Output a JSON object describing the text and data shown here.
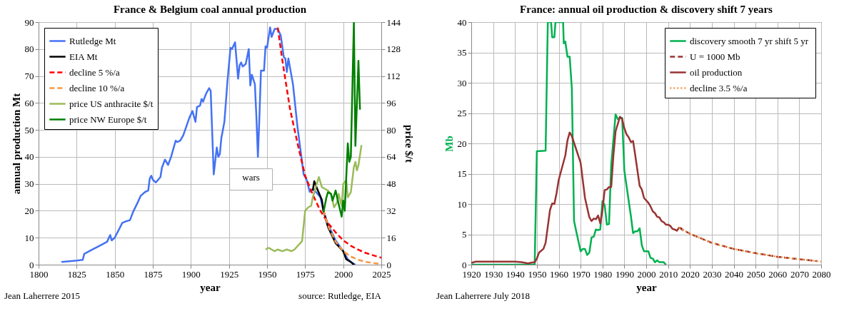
{
  "chart_data": [
    {
      "type": "line",
      "title": "France & Belgium coal annual production",
      "xlabel": "year",
      "ylabel": "annual production Mt",
      "y2label": "price $/t",
      "xlim": [
        1800,
        2025
      ],
      "xticks": [
        1800,
        1825,
        1850,
        1875,
        1900,
        1925,
        1950,
        1975,
        2000,
        2025
      ],
      "ylim": [
        0,
        90
      ],
      "yticks": [
        0,
        10,
        20,
        30,
        40,
        50,
        60,
        70,
        80,
        90
      ],
      "y2lim": [
        0,
        144
      ],
      "y2ticks": [
        0,
        16,
        32,
        48,
        64,
        80,
        96,
        112,
        128,
        144
      ],
      "grid": true,
      "legend": "top left",
      "annotations": [
        "wars",
        "Jean Laherrere 2015",
        "source: Rutledge, EIA"
      ],
      "series": [
        {
          "name": "Rutledge Mt",
          "color": "#4472f4",
          "line_style": "solid",
          "x": [
            1815,
            1825,
            1829,
            1830,
            1835,
            1840,
            1845,
            1847,
            1848,
            1850,
            1855,
            1857,
            1860,
            1862,
            1865,
            1867,
            1870,
            1872,
            1873,
            1874,
            1875,
            1877,
            1880,
            1881,
            1883,
            1885,
            1887,
            1890,
            1891,
            1893,
            1895,
            1899,
            1901,
            1903,
            1904,
            1906,
            1907,
            1908,
            1910,
            1912,
            1913,
            1915,
            1917,
            1918,
            1919,
            1920,
            1922,
            1924,
            1926,
            1927,
            1929,
            1931,
            1932,
            1933,
            1934,
            1936,
            1938,
            1939,
            1940,
            1942,
            1943,
            1944,
            1945,
            1946,
            1948,
            1949,
            1950,
            1952,
            1953,
            1955,
            1957,
            1959,
            1961,
            1962,
            1963,
            1964,
            1967,
            1970,
            1973,
            1974,
            1976,
            1978,
            1980,
            1982,
            1985,
            1987,
            1990,
            1995,
            2000,
            2003,
            2005,
            2008
          ],
          "values": [
            1,
            1.5,
            1.8,
            4,
            5.5,
            7,
            8.5,
            11,
            9,
            10,
            15.5,
            16,
            16.5,
            19.5,
            23,
            25.5,
            27,
            27.5,
            32,
            33,
            31.5,
            30.5,
            32.5,
            36,
            39,
            37,
            40,
            46,
            45.5,
            46,
            48,
            54.5,
            57,
            53,
            58.5,
            59,
            61.5,
            60.5,
            63.5,
            65.5,
            64.5,
            33.5,
            43.5,
            40,
            41,
            47,
            53,
            68,
            80.5,
            80,
            82.5,
            69,
            74,
            75,
            73.5,
            74.5,
            80,
            66.5,
            70.5,
            67,
            55,
            40,
            55,
            72,
            72,
            81,
            80.5,
            88,
            84.5,
            87.5,
            87.5,
            85,
            77,
            76.5,
            71.5,
            76.5,
            67,
            51,
            38,
            33.5,
            31.5,
            27,
            28,
            27,
            25,
            20,
            15,
            9,
            5,
            2,
            1,
            0
          ]
        },
        {
          "name": "EIA Mt",
          "color": "#000000",
          "line_style": "solid",
          "x": [
            1980,
            1981,
            1983,
            1986,
            1987,
            1990,
            1995,
            2000,
            2002,
            2005,
            2007
          ],
          "values": [
            27.5,
            31,
            28,
            24,
            20,
            14,
            8,
            5,
            2,
            1,
            0
          ]
        },
        {
          "name": "decline 5 %/a",
          "color": "#ff0000",
          "line_style": "dashed",
          "x": [
            1957,
            1960,
            1965,
            1970,
            1975,
            1980,
            1985,
            1990,
            1995,
            2000,
            2005,
            2010,
            2015,
            2020,
            2025
          ],
          "values": [
            88,
            76,
            58,
            45,
            33,
            26,
            20,
            15.5,
            12,
            9,
            7,
            5.5,
            4.3,
            3.4,
            2.6
          ]
        },
        {
          "name": "decline 10 %/a",
          "color": "#f79646",
          "line_style": "dashed",
          "x": [
            1987,
            1990,
            1995,
            2000,
            2005,
            2010,
            2015,
            2020,
            2025
          ],
          "values": [
            20,
            14.5,
            8.5,
            5,
            3,
            1.8,
            1,
            0.6,
            0.3
          ]
        },
        {
          "name": "price US anthracite $/t",
          "color": "#9bbb59",
          "line_style": "solid",
          "axis": "y2",
          "x": [
            1949,
            1951,
            1953,
            1955,
            1957,
            1960,
            1963,
            1966,
            1968,
            1970,
            1972,
            1973,
            1975,
            1977,
            1979,
            1980,
            1982,
            1984,
            1986,
            1988,
            1990,
            1992,
            1994,
            1996,
            1997,
            1999,
            2000,
            2002,
            2003,
            2005,
            2007,
            2008,
            2009,
            2010,
            2012
          ],
          "values": [
            9,
            10,
            9,
            8,
            9,
            8,
            9,
            8,
            9,
            11,
            13,
            14,
            32,
            34,
            35,
            40,
            46,
            52,
            46,
            45,
            44,
            42,
            34,
            37,
            42,
            35,
            48,
            50,
            40,
            43,
            58,
            61,
            56,
            59,
            71
          ]
        },
        {
          "name": "price NW Europe $/t",
          "color": "#008000",
          "line_style": "solid",
          "axis": "y2",
          "x": [
            1987,
            1989,
            1990,
            1992,
            1993,
            1995,
            1997,
            1999,
            2000,
            2001,
            2003,
            2004,
            2005,
            2007,
            2008,
            2010,
            2011
          ],
          "values": [
            31,
            40,
            43,
            42,
            38,
            44,
            36,
            28.5,
            38,
            32,
            72,
            61,
            64,
            144,
            70.5,
            121,
            92
          ]
        }
      ]
    },
    {
      "type": "line",
      "title": "France: annual oil production & discovery shift 7 years",
      "xlabel": "year",
      "ylabel": "Mb",
      "xlim": [
        1920,
        2080
      ],
      "xticks": [
        1920,
        1930,
        1940,
        1950,
        1960,
        1970,
        1980,
        1990,
        2000,
        2010,
        2020,
        2030,
        2040,
        2050,
        2060,
        2070,
        2080
      ],
      "ylim": [
        0,
        40
      ],
      "yticks": [
        0,
        5,
        10,
        15,
        20,
        25,
        30,
        35,
        40
      ],
      "grid": true,
      "legend": "top right",
      "annotations": [
        "Jean Laherrere July 2018"
      ],
      "series": [
        {
          "name": "discovery smooth 7 yr  shift 5 yr",
          "color": "#00b050",
          "line_style": "solid",
          "x": [
            1920,
            1949,
            1950,
            1954,
            1955,
            1956.5,
            1957,
            1958,
            1958.5,
            1962,
            1962.3,
            1963,
            1964,
            1965,
            1966,
            1967,
            1968,
            1970,
            1971,
            1972,
            1973,
            1974,
            1975,
            1976,
            1977,
            1978,
            1979,
            1980,
            1981,
            1982,
            1983,
            1984,
            1986,
            1987,
            1988,
            1989,
            1990,
            1991,
            1993,
            1994,
            1995,
            1996,
            1997,
            1998,
            1999,
            2001,
            2002,
            2003,
            2004,
            2005,
            2006,
            2008,
            2009
          ],
          "values": [
            0,
            0,
            18.7,
            18.8,
            40,
            40,
            37.5,
            37.5,
            40,
            40,
            36.5,
            36.8,
            34.3,
            34.3,
            29,
            7.2,
            5.5,
            2.2,
            2.6,
            2.6,
            1.6,
            2,
            4.5,
            4.6,
            5.8,
            5.7,
            5.8,
            10.5,
            9.8,
            6.6,
            6.7,
            16.5,
            24.8,
            24,
            24.2,
            24.2,
            15.5,
            13,
            8,
            5.2,
            5.5,
            5.5,
            6,
            3.2,
            2.2,
            2.2,
            1.1,
            1,
            0.4,
            0.7,
            0.4,
            0.4,
            0
          ]
        },
        {
          "name": "U = 1000 Mb",
          "color": "#993333",
          "line_style": "dashed",
          "x": [
            2015,
            2020,
            2030,
            2040,
            2050,
            2060,
            2070,
            2078
          ],
          "values": [
            6.1,
            5.1,
            3.6,
            2.6,
            1.9,
            1.3,
            0.9,
            0.6
          ]
        },
        {
          "name": "oil production",
          "color": "#993333",
          "line_style": "solid",
          "x": [
            1920,
            1922,
            1925,
            1930,
            1935,
            1940,
            1943,
            1946,
            1947,
            1949,
            1950,
            1951,
            1953,
            1954,
            1956,
            1957,
            1958,
            1959,
            1960,
            1963,
            1964,
            1965,
            1966,
            1968,
            1970,
            1972,
            1974,
            1975,
            1976,
            1977,
            1978,
            1979,
            1980,
            1981,
            1982,
            1983,
            1984,
            1985,
            1986,
            1988,
            1989,
            1990,
            1991,
            1992,
            1993,
            1994,
            1995,
            1997,
            1998,
            1999,
            2001,
            2002,
            2003,
            2004,
            2005,
            2006,
            2007,
            2008,
            2009,
            2010,
            2011,
            2012,
            2013,
            2014,
            2015,
            2016,
            2017
          ],
          "values": [
            0.3,
            0.5,
            0.5,
            0.5,
            0.5,
            0.5,
            0.4,
            0.2,
            0.3,
            0.4,
            1,
            2,
            2.6,
            3.6,
            9,
            10.1,
            10,
            11.8,
            14,
            18,
            20.5,
            21.8,
            21.2,
            19,
            16.8,
            11,
            7.8,
            7.2,
            7.6,
            7.5,
            8.1,
            6.8,
            9,
            12.3,
            12.4,
            12.8,
            12.8,
            18,
            22,
            24.4,
            24,
            22.5,
            21.5,
            21,
            20.2,
            20.4,
            18,
            13,
            12.4,
            11,
            10.2,
            9.6,
            8.8,
            8.5,
            7.9,
            7.8,
            7.2,
            7,
            6.6,
            6.6,
            6.4,
            5.9,
            5.8,
            5.6,
            6.1,
            6,
            5.6
          ]
        },
        {
          "name": "decline 3.5 %/a",
          "color": "#f79646",
          "line_style": "dotted",
          "x": [
            2015,
            2020,
            2030,
            2040,
            2050,
            2060,
            2070,
            2080
          ],
          "values": [
            6.1,
            5.1,
            3.6,
            2.6,
            1.9,
            1.3,
            0.9,
            0.5
          ]
        }
      ]
    }
  ]
}
